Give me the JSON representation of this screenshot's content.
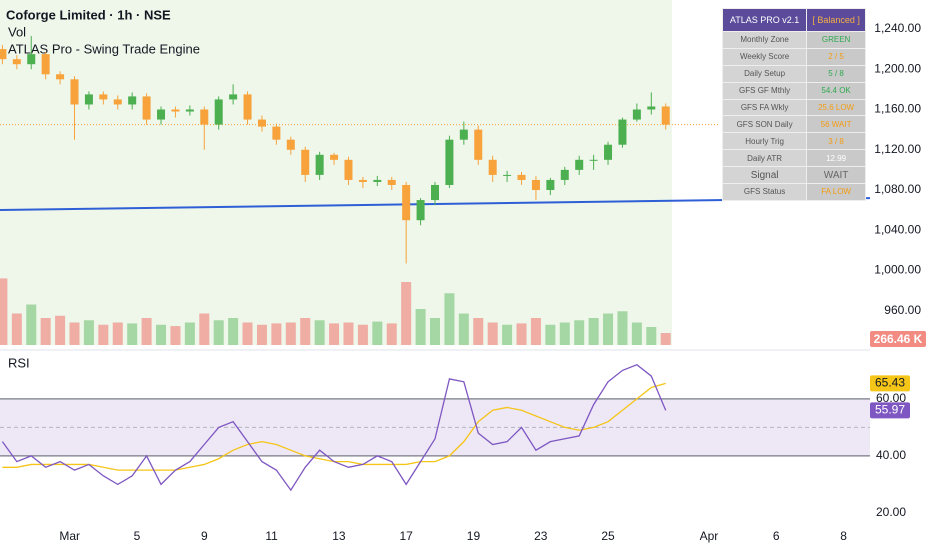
{
  "chart_data": {
    "type": "candlestick",
    "title": "Coforge Limited · 1h · NSE",
    "volume_title": "Vol",
    "indicator_title": "ATLAS Pro - Swing Trade Engine",
    "up_color": "#4caf50",
    "down_color": "#f7a23b",
    "x": [
      -14,
      -11,
      -8,
      -5,
      -2,
      1,
      4,
      7,
      10,
      13,
      16,
      19,
      22,
      25,
      28,
      31,
      34,
      37,
      40,
      43,
      46,
      49,
      52,
      55,
      58,
      61,
      64,
      67,
      70,
      73,
      76,
      79,
      82,
      85,
      88,
      91,
      94,
      97,
      100,
      103,
      106,
      109,
      112,
      115,
      118,
      121,
      124
    ],
    "open": [
      1220,
      1210,
      1205,
      1215,
      1195,
      1190,
      1165,
      1175,
      1170,
      1165,
      1173,
      1150,
      1160,
      1158,
      1160,
      1145,
      1170,
      1175,
      1150,
      1143,
      1130,
      1120,
      1095,
      1115,
      1110,
      1090,
      1088,
      1090,
      1085,
      1050,
      1070,
      1085,
      1130,
      1140,
      1110,
      1095,
      1095,
      1090,
      1080,
      1090,
      1100,
      1110,
      1110,
      1125,
      1150,
      1160,
      1163
    ],
    "high": [
      1224,
      1214,
      1233,
      1217,
      1198,
      1193,
      1178,
      1178,
      1174,
      1177,
      1176,
      1163,
      1163,
      1164,
      1163,
      1173,
      1185,
      1178,
      1154,
      1146,
      1133,
      1123,
      1118,
      1117,
      1113,
      1093,
      1094,
      1093,
      1088,
      1072,
      1088,
      1134,
      1148,
      1144,
      1114,
      1099,
      1098,
      1094,
      1092,
      1103,
      1114,
      1115,
      1128,
      1152,
      1166,
      1177,
      1166
    ],
    "low": [
      1205,
      1200,
      1200,
      1190,
      1185,
      1130,
      1160,
      1165,
      1160,
      1160,
      1145,
      1145,
      1152,
      1154,
      1120,
      1140,
      1165,
      1145,
      1138,
      1125,
      1115,
      1088,
      1090,
      1105,
      1085,
      1082,
      1084,
      1080,
      1007,
      1045,
      1065,
      1082,
      1125,
      1105,
      1088,
      1088,
      1085,
      1070,
      1075,
      1085,
      1095,
      1100,
      1105,
      1122,
      1148,
      1155,
      1140
    ],
    "close": [
      1210,
      1205,
      1215,
      1195,
      1190,
      1165,
      1175,
      1170,
      1165,
      1173,
      1150,
      1160,
      1158,
      1160,
      1145,
      1170,
      1175,
      1150,
      1143,
      1130,
      1120,
      1095,
      1115,
      1110,
      1090,
      1088,
      1090,
      1085,
      1050,
      1070,
      1085,
      1130,
      1140,
      1110,
      1095,
      1095,
      1090,
      1080,
      1090,
      1100,
      1110,
      1110,
      1125,
      1150,
      1160,
      1163,
      1145
    ],
    "volume": [
      1480,
      700,
      900,
      600,
      650,
      500,
      550,
      450,
      500,
      480,
      600,
      450,
      420,
      500,
      700,
      550,
      600,
      500,
      450,
      480,
      500,
      600,
      550,
      480,
      500,
      450,
      520,
      480,
      1400,
      800,
      600,
      1150,
      700,
      600,
      500,
      450,
      480,
      600,
      450,
      500,
      550,
      600,
      700,
      750,
      500,
      400,
      266.46
    ],
    "volume_last_label": "266.46 K",
    "volume_lim": [
      0,
      2000
    ],
    "xlim": [
      -14.5,
      166.5
    ],
    "xticks": [
      {
        "value": 0,
        "label": "Mar"
      },
      {
        "value": 14,
        "label": "5"
      },
      {
        "value": 28,
        "label": "9"
      },
      {
        "value": 42,
        "label": "11"
      },
      {
        "value": 56,
        "label": "13"
      },
      {
        "value": 70,
        "label": "17"
      },
      {
        "value": 84,
        "label": "19"
      },
      {
        "value": 98,
        "label": "23"
      },
      {
        "value": 112,
        "label": "25"
      },
      {
        "value": 133,
        "label": "Apr"
      },
      {
        "value": 147,
        "label": "6"
      },
      {
        "value": 161,
        "label": "8"
      }
    ],
    "ylim": [
      926,
      1268.8
    ],
    "yticks": [
      {
        "value": 1240,
        "label": "1,240.00"
      },
      {
        "value": 1200,
        "label": "1,200.00"
      },
      {
        "value": 1160,
        "label": "1,160.00"
      },
      {
        "value": 1120,
        "label": "1,120.00"
      },
      {
        "value": 1080,
        "label": "1,080.00"
      },
      {
        "value": 1040,
        "label": "1,040.00"
      },
      {
        "value": 1000,
        "label": "1,000.00"
      },
      {
        "value": 960,
        "label": "960.00"
      }
    ],
    "trendline": {
      "color": "#2f5fd6",
      "x": [
        -14.5,
        166.5
      ],
      "y": [
        1060.1,
        1072
      ]
    },
    "rsi": {
      "title": "RSI",
      "color": "#7e57c2",
      "ma_color": "#f5c518",
      "values": [
        45,
        38,
        40,
        36,
        38,
        35,
        37,
        33,
        30,
        33,
        40,
        30,
        35,
        38,
        44,
        50,
        52,
        45,
        38,
        35,
        28,
        36,
        42,
        38,
        36,
        37,
        40,
        38,
        30,
        38,
        46,
        67,
        66,
        48,
        44,
        45,
        50,
        42,
        45,
        46,
        47,
        58,
        66,
        70,
        72,
        68,
        55.97
      ],
      "ma": [
        36,
        36,
        37,
        37,
        37,
        37,
        37,
        36,
        35,
        35,
        35,
        35,
        35,
        36,
        37,
        39,
        42,
        44,
        45,
        44,
        42,
        40,
        39,
        38,
        38,
        37,
        37,
        37,
        37,
        38,
        38,
        40,
        45,
        52,
        56,
        57,
        56,
        54,
        52,
        50,
        49,
        50,
        52,
        56,
        60,
        64,
        65.43
      ],
      "ylim": [
        14,
        75.4
      ],
      "yticks": [
        {
          "value": 20,
          "label": "20.00"
        },
        {
          "value": 40,
          "label": "40.00"
        },
        {
          "value": 60,
          "label": "60.00"
        }
      ],
      "band": [
        40,
        60
      ],
      "midline": 50
    },
    "table": {
      "title": "ATLAS PRO v2.1",
      "mode": "[ Balanced ]",
      "rows": [
        {
          "label": "Monthly Zone",
          "value": "GREEN",
          "color": "#2fa84f"
        },
        {
          "label": "Weekly Score",
          "value": "2 / 5",
          "color": "#f39c12"
        },
        {
          "label": "Daily Setup",
          "value": "5 / 8",
          "color": "#2fa84f"
        },
        {
          "label": "GFS  GF  Mthly",
          "value": "54.4  OK",
          "color": "#2fa84f"
        },
        {
          "label": "GFS  FA  Wkly",
          "value": "25.6  LOW",
          "color": "#f39c12"
        },
        {
          "label": "GFS  SON Daily",
          "value": "56  WAIT",
          "color": "#f39c12"
        },
        {
          "label": "Hourly Trig",
          "value": "3 / 8",
          "color": "#f39c12"
        },
        {
          "label": "Daily ATR",
          "value": "12.99",
          "color": "#ffffff"
        },
        {
          "label": "Signal",
          "value": "WAIT",
          "color": "#666666"
        },
        {
          "label": "GFS Status",
          "value": "FA LOW",
          "color": "#f39c12"
        }
      ]
    }
  }
}
